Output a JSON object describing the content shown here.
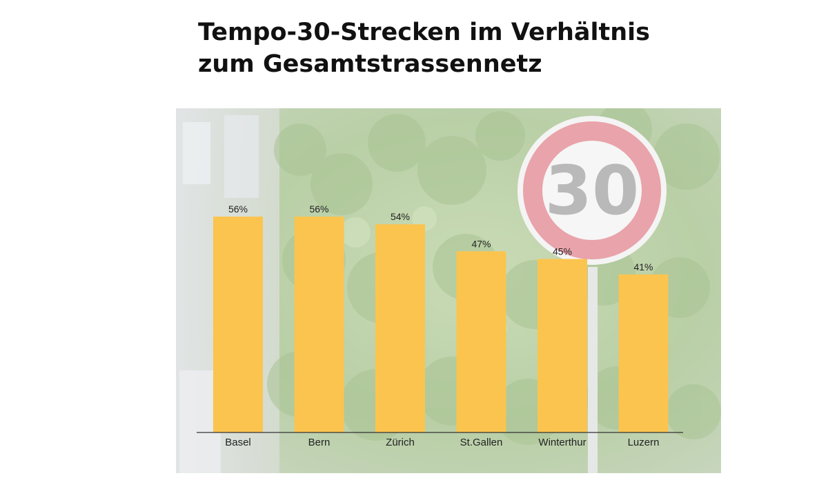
{
  "title_lines": [
    "Tempo-30-Strecken im Verhältnis",
    "zum Gesamtstrassennetz"
  ],
  "background": {
    "description_icon": "speed-limit-30-sign-photo",
    "sign_text": "30"
  },
  "colors": {
    "bar": "#fbc44f",
    "axis": "#333333",
    "text": "#222222",
    "sign_ring": "#e8a0a8",
    "foliage": "#bcd4a8"
  },
  "chart_data": {
    "type": "bar",
    "categories": [
      "Basel",
      "Bern",
      "Zürich",
      "St.Gallen",
      "Winterthur",
      "Luzern"
    ],
    "values": [
      56,
      56,
      54,
      47,
      45,
      41
    ],
    "value_labels": [
      "56%",
      "56%",
      "54%",
      "47%",
      "45%",
      "41%"
    ],
    "title": "Tempo-30-Strecken im Verhältnis zum Gesamtstrassennetz",
    "xlabel": "",
    "ylabel": "",
    "ylim": [
      0,
      56
    ],
    "grid": false,
    "legend": "none"
  }
}
